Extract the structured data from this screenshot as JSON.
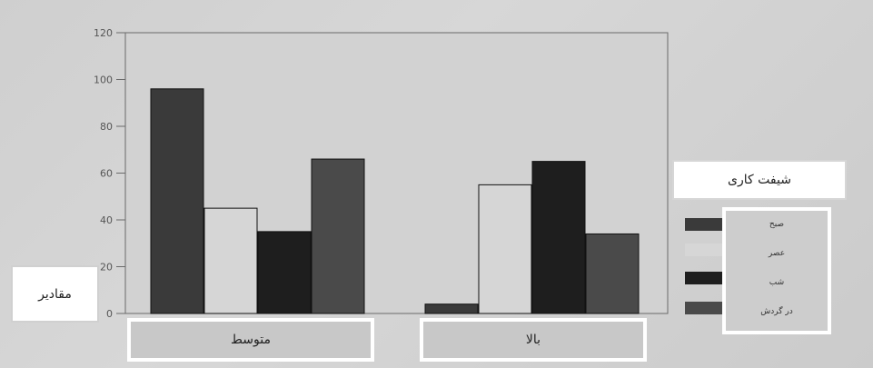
{
  "chart_data": {
    "type": "bar",
    "categories": [
      "متوسط",
      "بالا"
    ],
    "series": [
      {
        "name": "صبح",
        "values": [
          96,
          4
        ],
        "color": "#3a3a3a"
      },
      {
        "name": "عصر",
        "values": [
          45,
          55
        ],
        "color": "#d6d6d6"
      },
      {
        "name": "شب",
        "values": [
          35,
          65
        ],
        "color": "#1e1e1e"
      },
      {
        "name": "در گردش",
        "values": [
          66,
          34
        ],
        "color": "#4a4a4a"
      }
    ],
    "ylabel": "مقادیر",
    "legend_title": "شیفت کاری",
    "ylim": [
      0,
      120
    ],
    "yticks": [
      "0",
      "20",
      "40",
      "60",
      "80",
      "100",
      "120"
    ],
    "grid": false,
    "legend_position": "right"
  }
}
